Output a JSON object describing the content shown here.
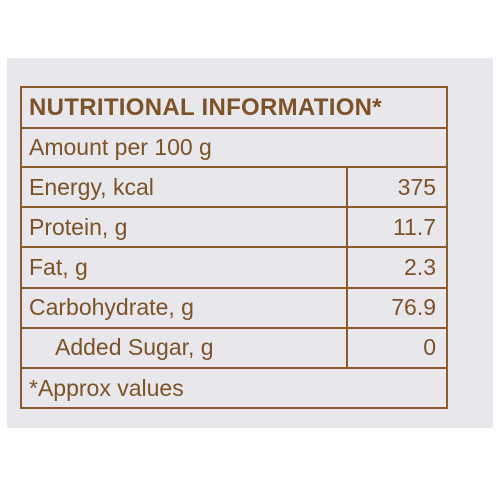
{
  "title": "NUTRITIONAL INFORMATION*",
  "subtitle": "Amount per 100 g",
  "rows": [
    {
      "name": "Energy, kcal",
      "value": 375
    },
    {
      "name": "Protein, g",
      "value": 11.7
    },
    {
      "name": "Fat, g",
      "value": 2.3
    },
    {
      "name": "Carbohydrate, g",
      "value": 76.9
    },
    {
      "name": "Added Sugar, g",
      "value": 0
    }
  ],
  "footnote": "*Approx values"
}
